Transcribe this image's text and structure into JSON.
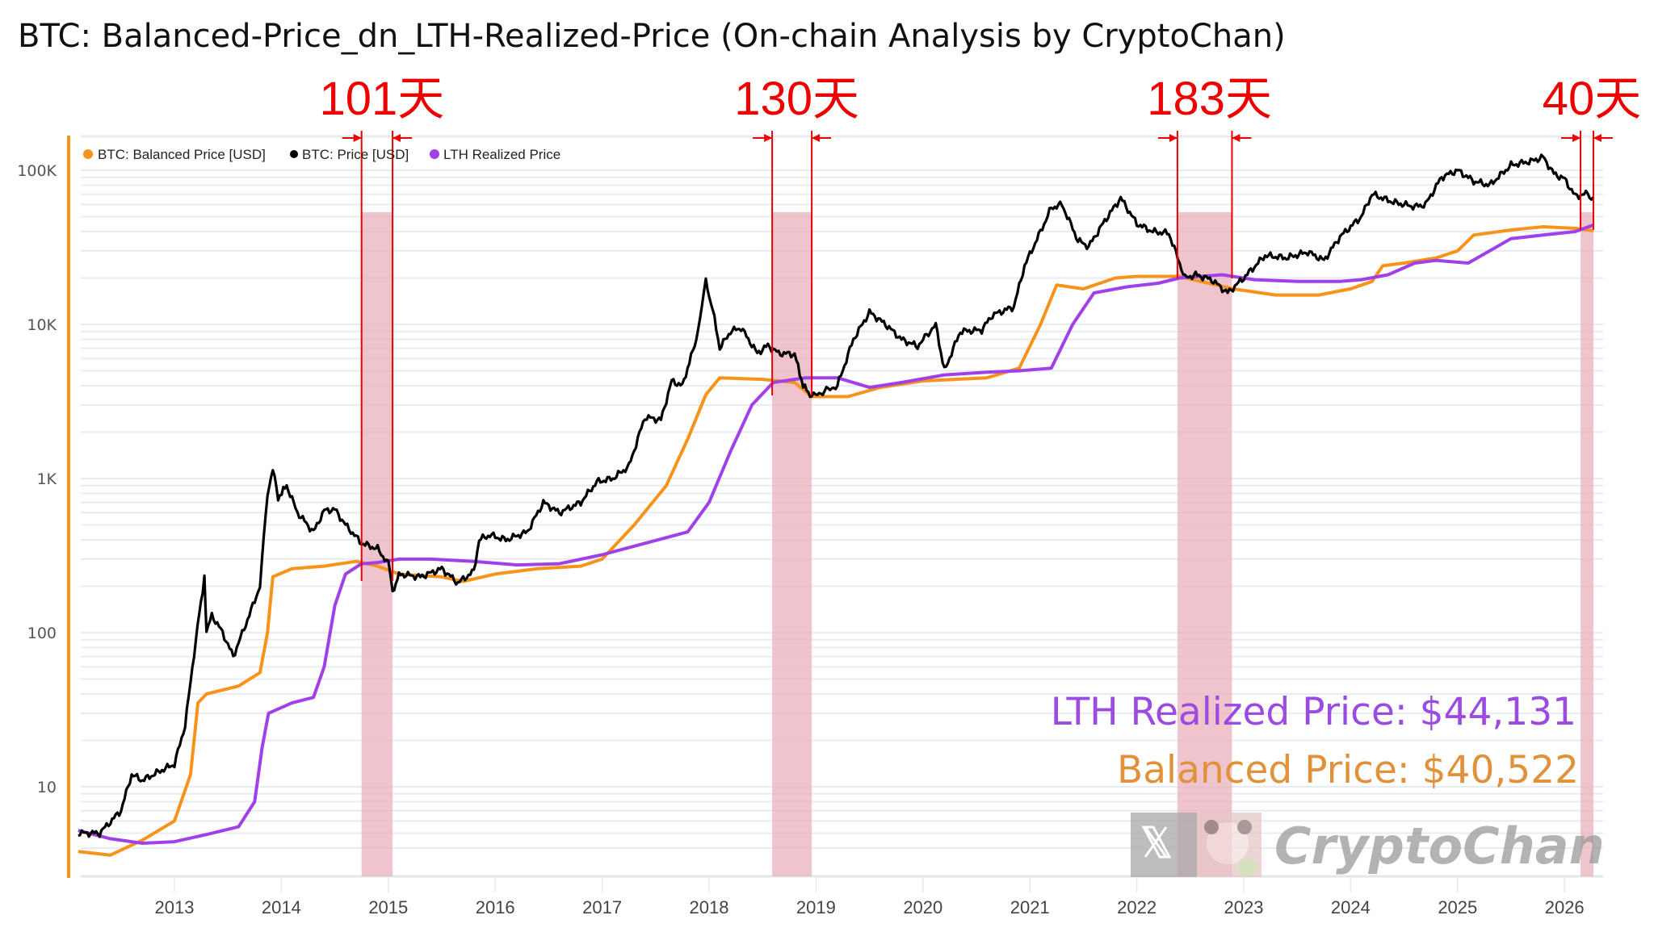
{
  "chart_data": {
    "type": "line",
    "title": "BTC: Balanced-Price_dn_LTH-Realized-Price (On-chain Analysis by CryptoChan)",
    "xlabel": "",
    "ylabel": "",
    "yscale": "log",
    "ylim": [
      3.5,
      180000
    ],
    "xlim": [
      2012.1,
      2026.35
    ],
    "grid": true,
    "legend_position": "top-left",
    "y_ticks": [
      {
        "value": 10,
        "label": "10"
      },
      {
        "value": 100,
        "label": "100"
      },
      {
        "value": 1000,
        "label": "1K"
      },
      {
        "value": 10000,
        "label": "10K"
      },
      {
        "value": 100000,
        "label": "100K"
      }
    ],
    "x_ticks": [
      {
        "value": 2013,
        "label": "2013"
      },
      {
        "value": 2014,
        "label": "2014"
      },
      {
        "value": 2015,
        "label": "2015"
      },
      {
        "value": 2016,
        "label": "2016"
      },
      {
        "value": 2017,
        "label": "2017"
      },
      {
        "value": 2018,
        "label": "2018"
      },
      {
        "value": 2019,
        "label": "2019"
      },
      {
        "value": 2020,
        "label": "2020"
      },
      {
        "value": 2021,
        "label": "2021"
      },
      {
        "value": 2022,
        "label": "2022"
      },
      {
        "value": 2023,
        "label": "2023"
      },
      {
        "value": 2024,
        "label": "2024"
      },
      {
        "value": 2025,
        "label": "2025"
      },
      {
        "value": 2026,
        "label": "2026"
      }
    ],
    "series": [
      {
        "name": "BTC: Balanced Price [USD]",
        "color": "#f7931a",
        "points": [
          [
            2012.1,
            3.8
          ],
          [
            2012.4,
            3.6
          ],
          [
            2012.7,
            4.5
          ],
          [
            2013.0,
            6
          ],
          [
            2013.15,
            12
          ],
          [
            2013.22,
            35
          ],
          [
            2013.3,
            40
          ],
          [
            2013.6,
            45
          ],
          [
            2013.8,
            55
          ],
          [
            2013.87,
            100
          ],
          [
            2013.92,
            230
          ],
          [
            2014.1,
            260
          ],
          [
            2014.4,
            270
          ],
          [
            2014.7,
            290
          ],
          [
            2014.9,
            270
          ],
          [
            2015.1,
            240
          ],
          [
            2015.5,
            230
          ],
          [
            2015.7,
            215
          ],
          [
            2016.0,
            240
          ],
          [
            2016.4,
            260
          ],
          [
            2016.8,
            270
          ],
          [
            2017.0,
            300
          ],
          [
            2017.3,
            500
          ],
          [
            2017.6,
            900
          ],
          [
            2017.8,
            1800
          ],
          [
            2017.97,
            3500
          ],
          [
            2018.1,
            4500
          ],
          [
            2018.5,
            4400
          ],
          [
            2018.8,
            4200
          ],
          [
            2018.96,
            3400
          ],
          [
            2019.3,
            3400
          ],
          [
            2019.6,
            3900
          ],
          [
            2020.0,
            4300
          ],
          [
            2020.3,
            4400
          ],
          [
            2020.6,
            4500
          ],
          [
            2020.9,
            5200
          ],
          [
            2021.1,
            10000
          ],
          [
            2021.25,
            18000
          ],
          [
            2021.5,
            17000
          ],
          [
            2021.8,
            20000
          ],
          [
            2022.0,
            20500
          ],
          [
            2022.4,
            20500
          ],
          [
            2022.6,
            19000
          ],
          [
            2022.9,
            17000
          ],
          [
            2023.3,
            15500
          ],
          [
            2023.7,
            15500
          ],
          [
            2024.0,
            17000
          ],
          [
            2024.2,
            19000
          ],
          [
            2024.3,
            24000
          ],
          [
            2024.5,
            25000
          ],
          [
            2024.8,
            27000
          ],
          [
            2025.0,
            30000
          ],
          [
            2025.15,
            38000
          ],
          [
            2025.5,
            41000
          ],
          [
            2025.8,
            43000
          ],
          [
            2026.1,
            42000
          ],
          [
            2026.27,
            40522
          ]
        ]
      },
      {
        "name": "BTC: Price [USD]",
        "color": "#000000",
        "points": [
          [
            2012.1,
            5
          ],
          [
            2012.3,
            5
          ],
          [
            2012.5,
            7
          ],
          [
            2012.6,
            12
          ],
          [
            2012.7,
            11
          ],
          [
            2012.9,
            13
          ],
          [
            2013.0,
            14
          ],
          [
            2013.1,
            25
          ],
          [
            2013.2,
            90
          ],
          [
            2013.28,
            230
          ],
          [
            2013.3,
            100
          ],
          [
            2013.35,
            130
          ],
          [
            2013.45,
            100
          ],
          [
            2013.55,
            70
          ],
          [
            2013.7,
            130
          ],
          [
            2013.8,
            200
          ],
          [
            2013.87,
            800
          ],
          [
            2013.92,
            1150
          ],
          [
            2013.97,
            750
          ],
          [
            2014.05,
            900
          ],
          [
            2014.15,
            600
          ],
          [
            2014.3,
            450
          ],
          [
            2014.4,
            620
          ],
          [
            2014.5,
            630
          ],
          [
            2014.6,
            500
          ],
          [
            2014.75,
            380
          ],
          [
            2014.9,
            350
          ],
          [
            2015.0,
            280
          ],
          [
            2015.04,
            180
          ],
          [
            2015.1,
            240
          ],
          [
            2015.3,
            230
          ],
          [
            2015.5,
            260
          ],
          [
            2015.65,
            210
          ],
          [
            2015.8,
            250
          ],
          [
            2015.85,
            400
          ],
          [
            2015.95,
            430
          ],
          [
            2016.1,
            400
          ],
          [
            2016.3,
            450
          ],
          [
            2016.45,
            700
          ],
          [
            2016.6,
            600
          ],
          [
            2016.8,
            700
          ],
          [
            2016.95,
            950
          ],
          [
            2017.1,
            1000
          ],
          [
            2017.25,
            1200
          ],
          [
            2017.4,
            2500
          ],
          [
            2017.55,
            2400
          ],
          [
            2017.65,
            4300
          ],
          [
            2017.75,
            4000
          ],
          [
            2017.88,
            8000
          ],
          [
            2017.97,
            19000
          ],
          [
            2018.05,
            11000
          ],
          [
            2018.1,
            7000
          ],
          [
            2018.2,
            9000
          ],
          [
            2018.3,
            9500
          ],
          [
            2018.45,
            6500
          ],
          [
            2018.55,
            7300
          ],
          [
            2018.65,
            6500
          ],
          [
            2018.8,
            6400
          ],
          [
            2018.88,
            4000
          ],
          [
            2018.96,
            3400
          ],
          [
            2019.2,
            4000
          ],
          [
            2019.35,
            8000
          ],
          [
            2019.5,
            12000
          ],
          [
            2019.65,
            10000
          ],
          [
            2019.8,
            8000
          ],
          [
            2019.95,
            7200
          ],
          [
            2020.12,
            10000
          ],
          [
            2020.2,
            5000
          ],
          [
            2020.35,
            9000
          ],
          [
            2020.55,
            9200
          ],
          [
            2020.65,
            11500
          ],
          [
            2020.85,
            13000
          ],
          [
            2020.95,
            24000
          ],
          [
            2021.1,
            40000
          ],
          [
            2021.2,
            57000
          ],
          [
            2021.3,
            60000
          ],
          [
            2021.45,
            35000
          ],
          [
            2021.55,
            32000
          ],
          [
            2021.7,
            47000
          ],
          [
            2021.85,
            66000
          ],
          [
            2022.0,
            45000
          ],
          [
            2022.15,
            40000
          ],
          [
            2022.3,
            39000
          ],
          [
            2022.45,
            20000
          ],
          [
            2022.55,
            21000
          ],
          [
            2022.7,
            19500
          ],
          [
            2022.85,
            16000
          ],
          [
            2023.0,
            20000
          ],
          [
            2023.2,
            28000
          ],
          [
            2023.4,
            27000
          ],
          [
            2023.6,
            29500
          ],
          [
            2023.75,
            26000
          ],
          [
            2023.9,
            37000
          ],
          [
            2024.1,
            50000
          ],
          [
            2024.2,
            70000
          ],
          [
            2024.4,
            62000
          ],
          [
            2024.6,
            58000
          ],
          [
            2024.7,
            60000
          ],
          [
            2024.85,
            90000
          ],
          [
            2025.0,
            100000
          ],
          [
            2025.15,
            85000
          ],
          [
            2025.3,
            80000
          ],
          [
            2025.5,
            108000
          ],
          [
            2025.7,
            115000
          ],
          [
            2025.8,
            122000
          ],
          [
            2025.9,
            95000
          ],
          [
            2026.0,
            88000
          ],
          [
            2026.1,
            68000
          ],
          [
            2026.2,
            70000
          ],
          [
            2026.27,
            67000
          ]
        ]
      },
      {
        "name": "LTH Realized Price",
        "color": "#a040e8",
        "points": [
          [
            2012.1,
            5.2
          ],
          [
            2012.4,
            4.6
          ],
          [
            2012.7,
            4.3
          ],
          [
            2013.0,
            4.4
          ],
          [
            2013.3,
            4.9
          ],
          [
            2013.6,
            5.5
          ],
          [
            2013.75,
            8
          ],
          [
            2013.82,
            18
          ],
          [
            2013.88,
            30
          ],
          [
            2014.1,
            35
          ],
          [
            2014.3,
            38
          ],
          [
            2014.4,
            60
          ],
          [
            2014.5,
            150
          ],
          [
            2014.6,
            240
          ],
          [
            2014.75,
            280
          ],
          [
            2014.9,
            285
          ],
          [
            2015.1,
            300
          ],
          [
            2015.4,
            300
          ],
          [
            2015.8,
            290
          ],
          [
            2016.2,
            275
          ],
          [
            2016.6,
            280
          ],
          [
            2017.0,
            320
          ],
          [
            2017.4,
            380
          ],
          [
            2017.8,
            450
          ],
          [
            2018.0,
            700
          ],
          [
            2018.2,
            1500
          ],
          [
            2018.4,
            3000
          ],
          [
            2018.6,
            4200
          ],
          [
            2018.9,
            4500
          ],
          [
            2019.2,
            4500
          ],
          [
            2019.5,
            3900
          ],
          [
            2019.8,
            4200
          ],
          [
            2020.2,
            4700
          ],
          [
            2020.6,
            4900
          ],
          [
            2020.9,
            5000
          ],
          [
            2021.2,
            5200
          ],
          [
            2021.4,
            10000
          ],
          [
            2021.6,
            16000
          ],
          [
            2021.9,
            17500
          ],
          [
            2022.2,
            18500
          ],
          [
            2022.4,
            20000
          ],
          [
            2022.8,
            21000
          ],
          [
            2023.1,
            19500
          ],
          [
            2023.5,
            19000
          ],
          [
            2023.9,
            19000
          ],
          [
            2024.1,
            19500
          ],
          [
            2024.35,
            21000
          ],
          [
            2024.6,
            25000
          ],
          [
            2024.8,
            26000
          ],
          [
            2025.1,
            25000
          ],
          [
            2025.3,
            30000
          ],
          [
            2025.5,
            36000
          ],
          [
            2025.8,
            38000
          ],
          [
            2026.1,
            40000
          ],
          [
            2026.27,
            44131
          ]
        ]
      }
    ],
    "shaded_periods": [
      {
        "start": 2014.75,
        "end": 2015.04,
        "label": "101天",
        "color": "#eab0bb"
      },
      {
        "start": 2018.59,
        "end": 2018.96,
        "label": "130天",
        "color": "#eab0bb"
      },
      {
        "start": 2022.38,
        "end": 2022.89,
        "label": "183天",
        "color": "#eab0bb"
      },
      {
        "start": 2026.15,
        "end": 2026.27,
        "label": "40天",
        "color": "#eab0bb"
      }
    ],
    "annotations": [
      {
        "text": "LTH Realized Price: $44,131",
        "color": "#9b4be0"
      },
      {
        "text": "Balanced Price: $40,522",
        "color": "#e0913a"
      }
    ]
  },
  "legend": {
    "items": [
      {
        "label": "BTC: Balanced Price [USD]",
        "color": "#f7931a"
      },
      {
        "label": "BTC: Price [USD]",
        "color": "#000000"
      },
      {
        "label": "LTH Realized Price",
        "color": "#a040e8"
      }
    ]
  },
  "watermark": {
    "text": "CryptoChan",
    "icon": "x-logo-icon"
  },
  "colors": {
    "annotation_red": "#ee0000",
    "axis_orange": "#f7931a",
    "grid": "#e8ecf1"
  }
}
